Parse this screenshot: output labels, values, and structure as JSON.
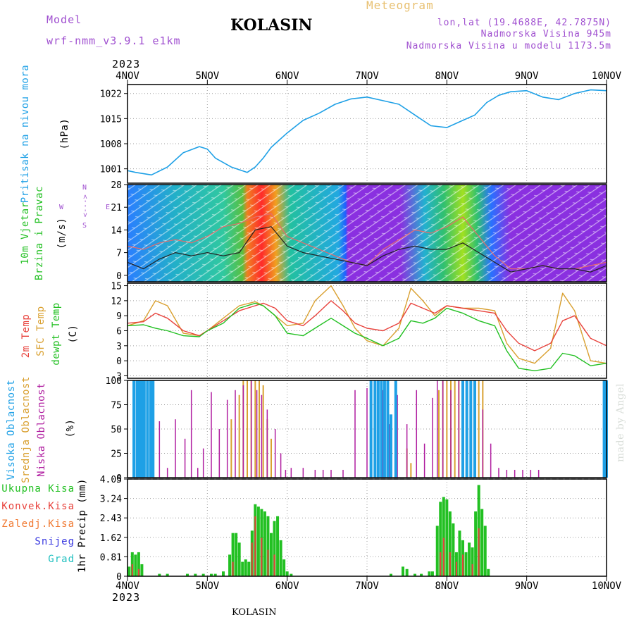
{
  "header": {
    "model_label": "Model",
    "model_name": "wrf-nmm_v3.9.1 e1km",
    "station": "KOLASIN",
    "product": "Meteogram",
    "coords": "lon,lat (19.4688E, 42.7875N)",
    "altitude": "Nadmorska Visina 945m",
    "model_altitude": "Nadmorska Visina u modelu 1173.5m",
    "year_top": "2023",
    "year_bottom": "2023",
    "footer_station": "KOLASIN",
    "watermark": "made by Angel"
  },
  "colors": {
    "pressure": "#1ea0e6",
    "temp2m": "#e8423c",
    "sfc": "#d9a030",
    "dew": "#22c022",
    "high": "#1ea0e6",
    "mid": "#d9a030",
    "low": "#b01ea0",
    "total": "#22c022",
    "conv": "#e8423c",
    "frz": "#f07830",
    "snow": "#3838e0",
    "hail": "#20c0c0",
    "windlabel": "#22c022",
    "tempdeg": "#000000"
  },
  "chart_data": [
    {
      "type": "line",
      "panel": "pressure",
      "title_label": "Pritisak na nivou mora",
      "unit": "(hPa)",
      "x_ticks": [
        "4NOV",
        "5NOV",
        "6NOV",
        "7NOV",
        "8NOV",
        "9NOV",
        "10NOV"
      ],
      "yticks": [
        1001,
        1008,
        1015,
        1022
      ],
      "ylim": [
        997,
        1024.5
      ],
      "series": [
        {
          "x": [
            0,
            0.1,
            0.3,
            0.5,
            0.7,
            0.9,
            1.0,
            1.1,
            1.3,
            1.5,
            1.6,
            1.7,
            1.8,
            2.0,
            2.2,
            2.4,
            2.6,
            2.8,
            3.0,
            3.2,
            3.4,
            3.6,
            3.8,
            4.0,
            4.2,
            4.35,
            4.5,
            4.65,
            4.8,
            5.0,
            5.2,
            5.4,
            5.6,
            5.8,
            6.0
          ],
          "values": [
            1000.5,
            1000.0,
            999.3,
            1001.5,
            1005.5,
            1007.2,
            1006.5,
            1004.0,
            1001.5,
            1000.0,
            1001.5,
            1004.0,
            1007.0,
            1011.0,
            1014.5,
            1016.5,
            1019.0,
            1020.5,
            1021.0,
            1020.0,
            1019.0,
            1016.0,
            1013.0,
            1012.5,
            1014.5,
            1016.0,
            1019.5,
            1021.5,
            1022.5,
            1022.8,
            1021.0,
            1020.3,
            1022.0,
            1023.0,
            1022.8
          ]
        }
      ]
    },
    {
      "type": "line",
      "panel": "wind",
      "title_label": "10m Vjetar",
      "title_label2": "Brzina i Pravac",
      "unit": "(m/s)",
      "legend_n": "N",
      "legend_s": "S",
      "legend_w": "W",
      "legend_e": "E",
      "legend_arrows": "<--->",
      "yticks": [
        0,
        7,
        14,
        21,
        28
      ],
      "ylim": [
        -2,
        28
      ],
      "series": [
        {
          "name": "speed",
          "x": [
            0,
            0.2,
            0.4,
            0.6,
            0.8,
            1.0,
            1.2,
            1.4,
            1.6,
            1.8,
            2.0,
            2.2,
            2.4,
            2.6,
            2.8,
            3.0,
            3.2,
            3.4,
            3.6,
            3.8,
            4.0,
            4.2,
            4.4,
            4.6,
            4.8,
            5.0,
            5.2,
            5.4,
            5.6,
            5.8,
            6.0
          ],
          "values": [
            4,
            2,
            5,
            7,
            6,
            7,
            6,
            7,
            14,
            15,
            9,
            7,
            6,
            5,
            4,
            3,
            6,
            8,
            9,
            8,
            8,
            10,
            7,
            4,
            1,
            2,
            3,
            2,
            2,
            1,
            3
          ]
        },
        {
          "name": "gust",
          "x": [
            0,
            0.2,
            0.4,
            0.6,
            0.8,
            1.0,
            1.2,
            1.4,
            1.6,
            1.8,
            2.0,
            2.2,
            2.4,
            2.6,
            2.8,
            3.0,
            3.2,
            3.4,
            3.6,
            3.8,
            4.0,
            4.2,
            4.4,
            4.6,
            4.8,
            5.0,
            5.2,
            5.4,
            5.6,
            5.8,
            6.0
          ],
          "values": [
            9,
            8,
            10,
            11,
            10,
            12,
            15,
            16,
            18,
            19,
            12,
            10,
            8,
            6,
            4,
            3,
            8,
            11,
            14,
            13,
            15,
            18,
            12,
            6,
            2,
            2,
            3,
            2,
            2,
            3,
            4
          ]
        }
      ]
    },
    {
      "type": "line",
      "panel": "temperature",
      "title_label": "2m Temp",
      "title_label2": "SFC Temp",
      "title_label3": "dewpt Temp",
      "unit": "(C)",
      "yticks": [
        -3,
        0,
        3,
        6,
        9,
        12,
        15
      ],
      "ylim": [
        -3.5,
        15.5
      ],
      "series": [
        {
          "name": "2m Temp",
          "x": [
            0,
            0.2,
            0.35,
            0.5,
            0.7,
            0.9,
            1.0,
            1.2,
            1.4,
            1.6,
            1.7,
            1.85,
            2.0,
            2.2,
            2.35,
            2.55,
            2.7,
            2.85,
            3.0,
            3.2,
            3.4,
            3.55,
            3.7,
            3.85,
            4.0,
            4.2,
            4.4,
            4.6,
            4.75,
            4.9,
            5.1,
            5.3,
            5.45,
            5.6,
            5.8,
            6.0
          ],
          "values": [
            7.5,
            7.8,
            9.5,
            8.5,
            6.0,
            5.0,
            6.0,
            8.0,
            10.0,
            11.0,
            11.5,
            10.5,
            8.0,
            7.0,
            9.0,
            12.0,
            10.0,
            7.5,
            6.5,
            6.0,
            7.5,
            11.5,
            10.5,
            9.5,
            11.0,
            10.5,
            10.0,
            9.5,
            6.0,
            3.5,
            2.0,
            3.5,
            8.0,
            9.0,
            4.5,
            3.0
          ]
        },
        {
          "name": "SFC Temp",
          "x": [
            0,
            0.2,
            0.35,
            0.5,
            0.7,
            0.9,
            1.0,
            1.2,
            1.4,
            1.6,
            1.7,
            1.85,
            2.0,
            2.2,
            2.35,
            2.55,
            2.7,
            2.85,
            3.0,
            3.2,
            3.4,
            3.55,
            3.7,
            3.85,
            4.0,
            4.2,
            4.4,
            4.6,
            4.75,
            4.9,
            5.1,
            5.3,
            5.45,
            5.6,
            5.8,
            6.0
          ],
          "values": [
            7.0,
            8.0,
            12.0,
            11.0,
            5.5,
            5.0,
            6.0,
            8.5,
            11.0,
            11.8,
            11.0,
            9.0,
            7.0,
            7.5,
            12.0,
            15.0,
            11.0,
            6.5,
            4.0,
            3.0,
            6.5,
            14.5,
            12.0,
            9.0,
            11.0,
            10.5,
            10.5,
            10.0,
            3.5,
            0.5,
            -0.5,
            2.5,
            13.5,
            10.0,
            0.0,
            -0.5
          ]
        },
        {
          "name": "dewpt Temp",
          "x": [
            0,
            0.2,
            0.35,
            0.5,
            0.7,
            0.9,
            1.0,
            1.2,
            1.4,
            1.6,
            1.7,
            1.85,
            2.0,
            2.2,
            2.35,
            2.55,
            2.7,
            2.85,
            3.0,
            3.2,
            3.4,
            3.55,
            3.7,
            3.85,
            4.0,
            4.2,
            4.4,
            4.6,
            4.75,
            4.9,
            5.1,
            5.3,
            5.45,
            5.6,
            5.8,
            6.0
          ],
          "values": [
            7.0,
            7.2,
            6.5,
            6.0,
            5.0,
            4.8,
            6.0,
            7.5,
            10.5,
            11.5,
            11.0,
            9.0,
            5.5,
            5.0,
            6.5,
            8.5,
            7.0,
            5.5,
            4.5,
            3.0,
            4.5,
            8.0,
            7.5,
            8.5,
            10.5,
            9.5,
            8.0,
            7.0,
            2.0,
            -1.5,
            -2.0,
            -1.5,
            1.5,
            1.0,
            -1.0,
            -0.5
          ]
        }
      ]
    },
    {
      "type": "bar",
      "panel": "clouds",
      "title_label": "Visoka Oblacnost",
      "title_label2": "Srednja Oblacnost",
      "title_label3": "Niska Oblacnost",
      "unit": "(%)",
      "yticks": [
        0,
        25,
        50,
        75,
        100
      ],
      "ylim": [
        0,
        100
      ],
      "series": [
        {
          "name": "Visoka Oblacnost",
          "x": [
            0.08,
            0.12,
            0.15,
            0.18,
            0.21,
            0.25,
            0.29,
            0.32,
            3.05,
            3.1,
            3.14,
            3.18,
            3.22,
            3.26,
            3.3,
            3.36,
            4.2,
            4.25,
            4.3,
            4.35,
            5.97,
            6.0
          ],
          "values": [
            100,
            100,
            100,
            100,
            100,
            100,
            100,
            100,
            100,
            100,
            100,
            100,
            100,
            100,
            65,
            100,
            100,
            100,
            100,
            100,
            100,
            100
          ]
        },
        {
          "name": "Srednja Oblacnost",
          "x": [
            0.2,
            1.3,
            1.4,
            1.45,
            1.5,
            1.55,
            1.6,
            1.65,
            1.7,
            1.75,
            1.8,
            3.5,
            3.55,
            3.9,
            3.95,
            4.0,
            4.05,
            4.1,
            4.15,
            4.4,
            4.45
          ],
          "values": [
            40,
            60,
            85,
            100,
            100,
            100,
            100,
            100,
            95,
            60,
            40,
            30,
            15,
            90,
            100,
            100,
            100,
            100,
            100,
            100,
            100
          ]
        },
        {
          "name": "Niska Oblacnost",
          "x": [
            0.15,
            0.28,
            0.4,
            0.5,
            0.6,
            0.72,
            0.8,
            0.88,
            0.95,
            1.05,
            1.15,
            1.25,
            1.35,
            1.45,
            1.55,
            1.62,
            1.68,
            1.75,
            1.85,
            1.92,
            1.98,
            2.05,
            2.2,
            2.35,
            2.45,
            2.55,
            2.7,
            2.85,
            3.0,
            3.1,
            3.2,
            3.28,
            3.38,
            3.5,
            3.62,
            3.72,
            3.82,
            3.88,
            3.95,
            4.05,
            4.15,
            4.25,
            4.35,
            4.45,
            4.55,
            4.65,
            4.75,
            4.85,
            4.95,
            5.05,
            5.15
          ],
          "values": [
            60,
            20,
            58,
            10,
            60,
            40,
            90,
            10,
            30,
            88,
            50,
            80,
            90,
            95,
            100,
            90,
            85,
            70,
            50,
            25,
            8,
            10,
            10,
            8,
            8,
            8,
            8,
            90,
            92,
            95,
            90,
            55,
            85,
            55,
            90,
            35,
            82,
            100,
            100,
            90,
            100,
            90,
            100,
            70,
            35,
            10,
            8,
            8,
            8,
            8,
            8
          ]
        }
      ]
    },
    {
      "type": "bar",
      "panel": "precip",
      "title_label": "1hr Precip (mm)",
      "legend": [
        "Ukupna Kisa",
        "Konvek.Kisa",
        "Zaledj.Kisa",
        "Snijeg",
        "Grad"
      ],
      "yticks": [
        0,
        0.81,
        1.62,
        2.43,
        3.24,
        4.05
      ],
      "ylim": [
        0,
        4.05
      ],
      "series": [
        {
          "name": "Ukupna Kisa",
          "x": [
            0.02,
            0.06,
            0.1,
            0.14,
            0.18,
            0.4,
            0.5,
            0.75,
            0.85,
            0.95,
            1.05,
            1.1,
            1.2,
            1.28,
            1.32,
            1.36,
            1.4,
            1.44,
            1.48,
            1.52,
            1.56,
            1.6,
            1.64,
            1.68,
            1.72,
            1.76,
            1.8,
            1.84,
            1.88,
            1.92,
            1.96,
            2.0,
            2.05,
            3.3,
            3.45,
            3.5,
            3.6,
            3.68,
            3.78,
            3.82,
            3.88,
            3.92,
            3.96,
            4.0,
            4.04,
            4.08,
            4.12,
            4.16,
            4.2,
            4.24,
            4.28,
            4.32,
            4.36,
            4.4,
            4.44,
            4.48,
            4.52
          ],
          "values": [
            0.4,
            1.0,
            0.9,
            1.0,
            0.5,
            0.1,
            0.1,
            0.1,
            0.1,
            0.1,
            0.1,
            0.1,
            0.2,
            0.9,
            1.8,
            1.8,
            1.4,
            0.6,
            0.7,
            0.6,
            1.9,
            3.0,
            2.9,
            2.8,
            2.7,
            2.5,
            1.8,
            2.3,
            2.5,
            1.5,
            0.7,
            0.2,
            0.1,
            0.1,
            0.4,
            0.3,
            0.1,
            0.1,
            0.2,
            0.2,
            2.1,
            3.1,
            3.3,
            3.2,
            2.7,
            2.2,
            1.0,
            1.9,
            1.5,
            1.0,
            1.4,
            1.2,
            2.7,
            3.8,
            2.8,
            2.1,
            0.3
          ]
        },
        {
          "name": "Konvek.Kisa",
          "x": [
            0.06,
            0.14,
            1.32,
            1.56,
            1.6,
            1.68,
            1.76,
            1.84,
            3.92,
            3.96,
            4.04,
            4.12,
            4.2,
            4.32,
            4.4
          ],
          "values": [
            0.5,
            0.3,
            0.6,
            1.4,
            2.5,
            1.6,
            1.1,
            0.9,
            1.0,
            1.6,
            1.0,
            0.6,
            0.9,
            0.5,
            2.0
          ]
        }
      ]
    }
  ]
}
